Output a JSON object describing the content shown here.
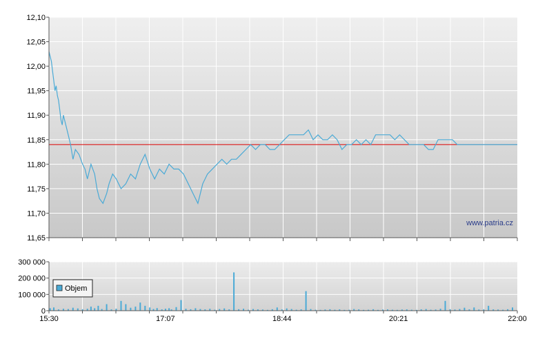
{
  "chart_data": [
    {
      "type": "line",
      "title": "",
      "xlabel": "",
      "ylabel": "",
      "ylim": [
        11.65,
        12.1
      ],
      "yticks": [
        "12,10",
        "12,05",
        "12,00",
        "11,95",
        "11,90",
        "11,85",
        "11,80",
        "11,75",
        "11,70",
        "11,65"
      ],
      "ytick_values": [
        12.1,
        12.05,
        12.0,
        11.95,
        11.9,
        11.85,
        11.8,
        11.75,
        11.7,
        11.65
      ],
      "xlim_minutes": [
        930,
        1320
      ],
      "reference_line": {
        "value": 11.84,
        "color": "#dd0000"
      },
      "watermark": "www.patria.cz",
      "line_color": "#4aaad6",
      "series": [
        {
          "x_minutes": [
            930,
            931,
            932,
            933,
            934,
            935,
            936,
            937,
            938,
            939,
            940,
            941,
            942,
            944,
            946,
            948,
            950,
            952,
            955,
            958,
            960,
            962,
            965,
            968,
            970,
            972,
            975,
            978,
            980,
            983,
            986,
            990,
            994,
            998,
            1002,
            1006,
            1010,
            1014,
            1018,
            1022,
            1026,
            1030,
            1034,
            1038,
            1042,
            1046,
            1050,
            1054,
            1058,
            1062,
            1066,
            1070,
            1074,
            1078,
            1082,
            1086,
            1090,
            1094,
            1098,
            1102,
            1106,
            1110,
            1114,
            1118,
            1122,
            1126,
            1130,
            1134,
            1138,
            1142,
            1146,
            1150,
            1154,
            1158,
            1162,
            1166,
            1170,
            1174,
            1178,
            1182,
            1186,
            1190,
            1194,
            1198,
            1202,
            1206,
            1210,
            1214,
            1218,
            1222,
            1226,
            1230,
            1234,
            1238,
            1242,
            1246,
            1250,
            1254,
            1258,
            1262,
            1266,
            1270,
            1274,
            1278,
            1282,
            1286,
            1290,
            1294,
            1298,
            1302,
            1306,
            1310,
            1314,
            1318,
            1320
          ],
          "y": [
            12.03,
            12.02,
            12.01,
            11.99,
            11.97,
            11.95,
            11.96,
            11.94,
            11.93,
            11.91,
            11.89,
            11.88,
            11.9,
            11.88,
            11.86,
            11.84,
            11.81,
            11.83,
            11.82,
            11.8,
            11.79,
            11.77,
            11.8,
            11.78,
            11.75,
            11.73,
            11.72,
            11.74,
            11.76,
            11.78,
            11.77,
            11.75,
            11.76,
            11.78,
            11.77,
            11.8,
            11.82,
            11.79,
            11.77,
            11.79,
            11.78,
            11.8,
            11.79,
            11.79,
            11.78,
            11.76,
            11.74,
            11.72,
            11.76,
            11.78,
            11.79,
            11.8,
            11.81,
            11.8,
            11.81,
            11.81,
            11.82,
            11.83,
            11.84,
            11.83,
            11.84,
            11.84,
            11.83,
            11.83,
            11.84,
            11.85,
            11.86,
            11.86,
            11.86,
            11.86,
            11.87,
            11.85,
            11.86,
            11.85,
            11.85,
            11.86,
            11.85,
            11.83,
            11.84,
            11.84,
            11.85,
            11.84,
            11.85,
            11.84,
            11.86,
            11.86,
            11.86,
            11.86,
            11.85,
            11.86,
            11.85,
            11.84,
            11.84,
            11.84,
            11.84,
            11.83,
            11.83,
            11.85,
            11.85,
            11.85,
            11.85,
            11.84,
            11.84,
            11.84,
            11.84,
            11.84,
            11.84,
            11.84,
            11.84,
            11.84,
            11.84,
            11.84,
            11.84,
            11.84,
            11.84
          ]
        }
      ]
    },
    {
      "type": "bar",
      "title": "",
      "xlabel": "",
      "ylabel": "",
      "ylim": [
        0,
        300000
      ],
      "yticks": [
        "300 000",
        "200 000",
        "100 000",
        "0"
      ],
      "ytick_values": [
        300000,
        200000,
        100000,
        0
      ],
      "xlim_minutes": [
        930,
        1320
      ],
      "xticks": [
        "15:30",
        "17:07",
        "18:44",
        "20:21",
        "22:00"
      ],
      "xtick_minutes": [
        930,
        1027,
        1124,
        1221,
        1320
      ],
      "legend": {
        "label": "Objem",
        "placement": "left"
      },
      "bar_color": "#4aaad6",
      "series": [
        {
          "name": "Objem",
          "x_minutes": [
            931,
            934,
            938,
            942,
            946,
            950,
            954,
            958,
            962,
            965,
            968,
            971,
            974,
            978,
            982,
            986,
            990,
            994,
            998,
            1002,
            1006,
            1010,
            1014,
            1017,
            1020,
            1024,
            1027,
            1030,
            1032,
            1036,
            1040,
            1044,
            1048,
            1052,
            1056,
            1060,
            1064,
            1068,
            1072,
            1076,
            1080,
            1084,
            1088,
            1092,
            1096,
            1100,
            1104,
            1108,
            1112,
            1116,
            1120,
            1124,
            1128,
            1132,
            1136,
            1140,
            1144,
            1148,
            1152,
            1156,
            1160,
            1164,
            1168,
            1172,
            1176,
            1180,
            1184,
            1188,
            1192,
            1196,
            1200,
            1204,
            1208,
            1212,
            1216,
            1220,
            1224,
            1228,
            1232,
            1236,
            1240,
            1244,
            1248,
            1252,
            1256,
            1260,
            1264,
            1268,
            1272,
            1276,
            1280,
            1284,
            1288,
            1292,
            1296,
            1300,
            1304,
            1308,
            1312,
            1316
          ],
          "values": [
            15000,
            20000,
            8000,
            12000,
            10000,
            18000,
            14000,
            9000,
            12000,
            25000,
            15000,
            30000,
            10000,
            40000,
            8000,
            12000,
            60000,
            40000,
            18000,
            25000,
            50000,
            30000,
            20000,
            10000,
            16000,
            8000,
            12000,
            15000,
            8000,
            22000,
            65000,
            12000,
            9000,
            15000,
            10000,
            8000,
            12000,
            6000,
            10000,
            14000,
            8000,
            235000,
            9000,
            12000,
            6000,
            10000,
            8000,
            7000,
            5000,
            9000,
            20000,
            8000,
            14000,
            10000,
            6000,
            8000,
            120000,
            10000,
            6000,
            5000,
            7000,
            9000,
            6000,
            8000,
            5000,
            6000,
            10000,
            8000,
            5000,
            6000,
            9000,
            5000,
            7000,
            8000,
            6000,
            5000,
            7000,
            8000,
            6000,
            5000,
            8000,
            10000,
            6000,
            7000,
            12000,
            60000,
            9000,
            7000,
            10000,
            18000,
            8000,
            20000,
            7000,
            8000,
            30000,
            8000,
            7000,
            6000,
            9000,
            20000
          ]
        }
      ]
    }
  ]
}
